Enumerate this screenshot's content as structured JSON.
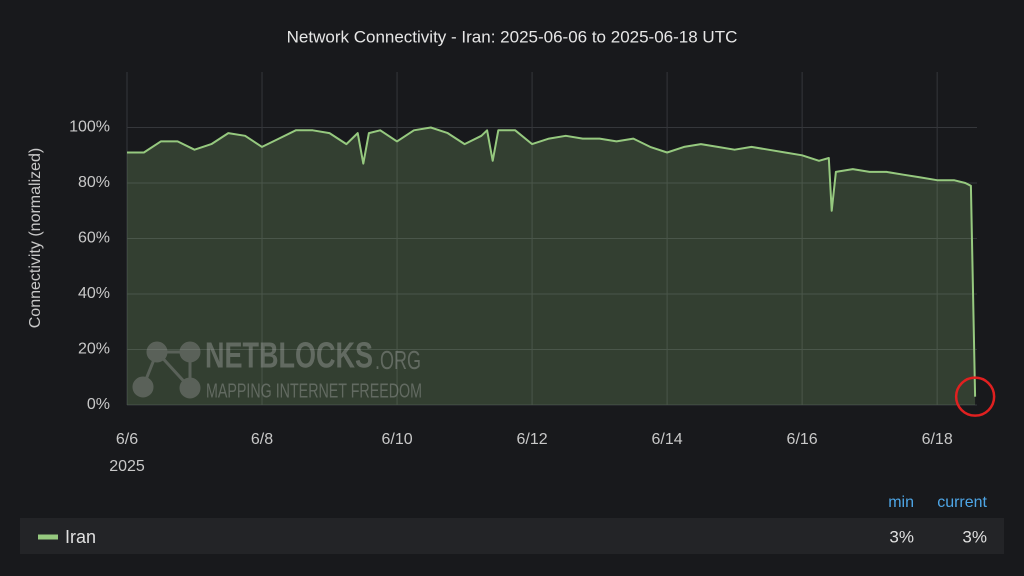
{
  "chart_data": {
    "type": "area",
    "title": "Network Connectivity - Iran: 2025-06-06 to 2025-06-18 UTC",
    "y_label": "Connectivity (normalized)",
    "x_year_label": "2025",
    "xlim": [
      "2025-06-06T00:00",
      "2025-06-18T14:10"
    ],
    "xticks": [
      {
        "value": "2025-06-06T00:00",
        "label": "6/6"
      },
      {
        "value": "2025-06-08T00:00",
        "label": "6/8"
      },
      {
        "value": "2025-06-10T00:00",
        "label": "6/10"
      },
      {
        "value": "2025-06-12T00:00",
        "label": "6/12"
      },
      {
        "value": "2025-06-14T00:00",
        "label": "6/14"
      },
      {
        "value": "2025-06-16T00:00",
        "label": "6/16"
      },
      {
        "value": "2025-06-18T00:00",
        "label": "6/18"
      }
    ],
    "ylim": [
      0,
      120
    ],
    "yticks": [
      {
        "value": 0,
        "label": "0%"
      },
      {
        "value": 20,
        "label": "20%"
      },
      {
        "value": 40,
        "label": "40%"
      },
      {
        "value": 60,
        "label": "60%"
      },
      {
        "value": 80,
        "label": "80%"
      },
      {
        "value": 100,
        "label": "100%"
      }
    ],
    "grid": true,
    "x": [
      "2025-06-06T00:00",
      "2025-06-06T06:00",
      "2025-06-06T12:00",
      "2025-06-06T18:00",
      "2025-06-07T00:00",
      "2025-06-07T06:00",
      "2025-06-07T12:00",
      "2025-06-07T18:00",
      "2025-06-08T00:00",
      "2025-06-08T06:00",
      "2025-06-08T12:00",
      "2025-06-08T18:00",
      "2025-06-09T00:00",
      "2025-06-09T06:00",
      "2025-06-09T10:00",
      "2025-06-09T12:00",
      "2025-06-09T14:00",
      "2025-06-09T18:00",
      "2025-06-10T00:00",
      "2025-06-10T06:00",
      "2025-06-10T12:00",
      "2025-06-10T18:00",
      "2025-06-11T00:00",
      "2025-06-11T06:00",
      "2025-06-11T08:00",
      "2025-06-11T10:00",
      "2025-06-11T12:00",
      "2025-06-11T18:00",
      "2025-06-12T00:00",
      "2025-06-12T06:00",
      "2025-06-12T12:00",
      "2025-06-12T18:00",
      "2025-06-13T00:00",
      "2025-06-13T06:00",
      "2025-06-13T12:00",
      "2025-06-13T18:00",
      "2025-06-14T00:00",
      "2025-06-14T06:00",
      "2025-06-14T12:00",
      "2025-06-14T18:00",
      "2025-06-15T00:00",
      "2025-06-15T06:00",
      "2025-06-15T12:00",
      "2025-06-15T18:00",
      "2025-06-16T00:00",
      "2025-06-16T06:00",
      "2025-06-16T09:30",
      "2025-06-16T10:30",
      "2025-06-16T12:00",
      "2025-06-16T18:00",
      "2025-06-17T00:00",
      "2025-06-17T06:00",
      "2025-06-17T12:00",
      "2025-06-17T18:00",
      "2025-06-18T00:00",
      "2025-06-18T06:00",
      "2025-06-18T10:00",
      "2025-06-18T12:00",
      "2025-06-18T13:30"
    ],
    "series": [
      {
        "name": "Iran",
        "color": "#96c97f",
        "values": [
          91,
          91,
          95,
          95,
          92,
          94,
          98,
          97,
          93,
          96,
          99,
          99,
          98,
          94,
          98,
          87,
          98,
          99,
          95,
          99,
          100,
          98,
          94,
          97,
          99,
          88,
          99,
          99,
          94,
          96,
          97,
          96,
          96,
          95,
          96,
          93,
          91,
          93,
          94,
          93,
          92,
          93,
          92,
          91,
          90,
          88,
          89,
          70,
          84,
          85,
          84,
          84,
          83,
          82,
          81,
          81,
          80,
          79,
          3
        ]
      }
    ],
    "legend_stats": {
      "columns": [
        "min",
        "current"
      ],
      "values": [
        3,
        3
      ],
      "value_labels": [
        "3%",
        "3%"
      ]
    },
    "watermark": {
      "name": "NETBLOCKS",
      "domain": ".ORG",
      "tagline": "MAPPING INTERNET FREEDOM"
    }
  }
}
